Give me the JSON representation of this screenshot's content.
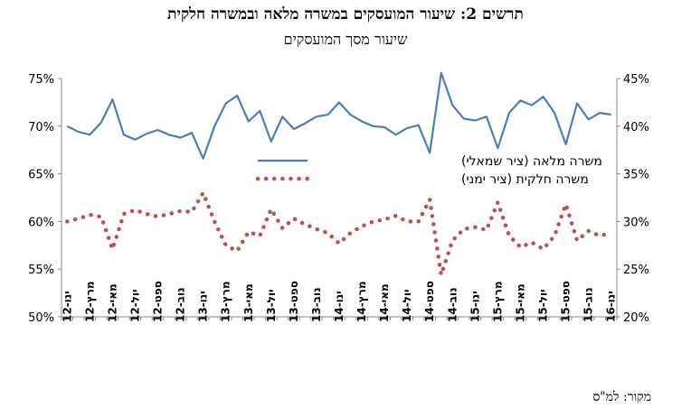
{
  "header": {
    "title": "תרשים 2: שיעור המועסקים במשרה מלאה ובמשרה חלקית",
    "subtitle": "שיעור מסך המועסקים"
  },
  "footer": {
    "source": "מקור: למ\"ס"
  },
  "chart_data": {
    "type": "line",
    "x_tick_labels": [
      "ינו-12",
      "מרץ-12",
      "מאי-12",
      "יול-12",
      "ספט-12",
      "נוב-12",
      "ינו-13",
      "מרץ-13",
      "מאי-13",
      "יול-13",
      "ספט-13",
      "נוב-13",
      "ינו-14",
      "מרץ-14",
      "מאי-14",
      "יול-14",
      "ספט-14",
      "נוב-14",
      "ינו-15",
      "מרץ-15",
      "מאי-15",
      "יול-15",
      "ספט-15",
      "נוב-15",
      "ינו-16"
    ],
    "x": [
      "01-12",
      "02-12",
      "03-12",
      "04-12",
      "05-12",
      "06-12",
      "07-12",
      "08-12",
      "09-12",
      "10-12",
      "11-12",
      "12-12",
      "01-13",
      "02-13",
      "03-13",
      "04-13",
      "05-13",
      "06-13",
      "07-13",
      "08-13",
      "09-13",
      "10-13",
      "11-13",
      "12-13",
      "01-14",
      "02-14",
      "03-14",
      "04-14",
      "05-14",
      "06-14",
      "07-14",
      "08-14",
      "09-14",
      "10-14",
      "11-14",
      "12-14",
      "01-15",
      "02-15",
      "03-15",
      "04-15",
      "05-15",
      "06-15",
      "07-15",
      "08-15",
      "09-15",
      "10-15",
      "11-15",
      "12-15",
      "01-16"
    ],
    "y_left": {
      "min": 50,
      "max": 75,
      "step": 5,
      "unit": "%",
      "tick_labels": [
        "50%",
        "55%",
        "60%",
        "65%",
        "70%",
        "75%"
      ]
    },
    "y_right": {
      "min": 20,
      "max": 45,
      "step": 5,
      "unit": "%",
      "tick_labels": [
        "20%",
        "25%",
        "30%",
        "35%",
        "40%",
        "45%"
      ]
    },
    "grid": false,
    "legend_position": "center",
    "series": [
      {
        "name": "משרה מלאה (ציר שמאלי)",
        "axis": "left",
        "style": "solid",
        "color": "#4a7ebb",
        "values": [
          70.0,
          69.4,
          69.1,
          70.4,
          72.8,
          69.1,
          68.6,
          69.2,
          69.6,
          69.1,
          68.8,
          69.3,
          66.6,
          70.0,
          72.4,
          73.2,
          70.5,
          71.6,
          68.4,
          71.0,
          69.7,
          70.3,
          71.0,
          71.2,
          72.5,
          71.2,
          70.5,
          70.0,
          69.9,
          69.1,
          69.8,
          70.1,
          67.2,
          75.6,
          72.2,
          70.8,
          70.6,
          71.0,
          67.7,
          71.4,
          72.7,
          72.2,
          73.1,
          71.4,
          68.1,
          72.4,
          70.7,
          71.4,
          71.2
        ]
      },
      {
        "name": "משרה חלקית (ציר ימני)",
        "axis": "right",
        "style": "dotted",
        "color": "#c0504d",
        "values": [
          30.0,
          30.3,
          30.7,
          30.5,
          27.1,
          30.8,
          31.2,
          30.8,
          30.5,
          30.8,
          31.1,
          31.0,
          33.0,
          30.0,
          27.5,
          26.9,
          28.9,
          28.5,
          31.3,
          29.3,
          30.3,
          29.7,
          29.2,
          28.8,
          27.7,
          28.8,
          29.5,
          30.0,
          30.2,
          30.6,
          30.0,
          30.0,
          32.3,
          24.4,
          28.0,
          29.2,
          29.4,
          29.1,
          32.0,
          28.5,
          27.3,
          27.8,
          27.1,
          28.5,
          31.8,
          28.0,
          29.0,
          28.5,
          28.8
        ]
      }
    ]
  }
}
